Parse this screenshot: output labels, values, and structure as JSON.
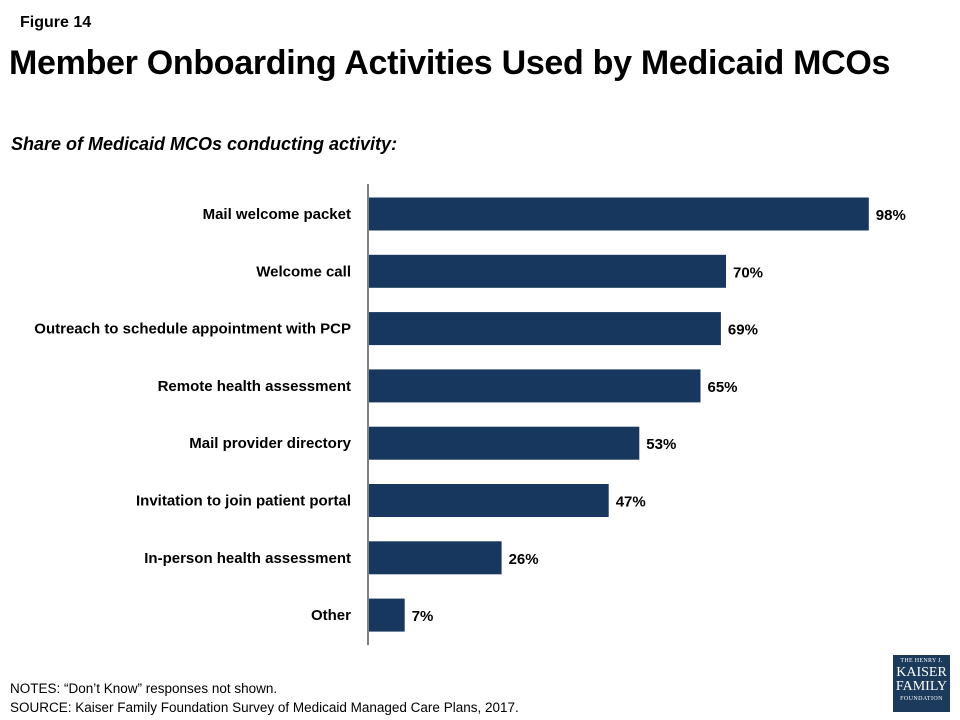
{
  "figure_label": "Figure 14",
  "title": "Member Onboarding Activities Used by Medicaid MCOs",
  "subtitle": "Share of Medicaid MCOs conducting activity:",
  "colors": {
    "bar": "#17375e",
    "axis": "#000000"
  },
  "chart_data": {
    "type": "bar",
    "orientation": "horizontal",
    "categories": [
      "Mail welcome packet",
      "Welcome call",
      "Outreach to schedule appointment with PCP",
      "Remote health assessment",
      "Mail provider directory",
      "Invitation to join patient portal",
      "In-person health assessment",
      "Other"
    ],
    "values": [
      98,
      70,
      69,
      65,
      53,
      47,
      26,
      7
    ],
    "data_labels": [
      "98%",
      "70%",
      "69%",
      "65%",
      "53%",
      "47%",
      "26%",
      "7%"
    ],
    "xlim": [
      0,
      100
    ],
    "grid": false,
    "legend": false
  },
  "notes": {
    "line1": "NOTES: “Don’t Know” responses not shown.",
    "line2": "SOURCE: Kaiser Family Foundation Survey of Medicaid Managed Care Plans, 2017."
  },
  "logo": {
    "line1": "THE HENRY J.",
    "line2": "KAISER",
    "line3": "FAMILY",
    "line4": "FOUNDATION"
  }
}
